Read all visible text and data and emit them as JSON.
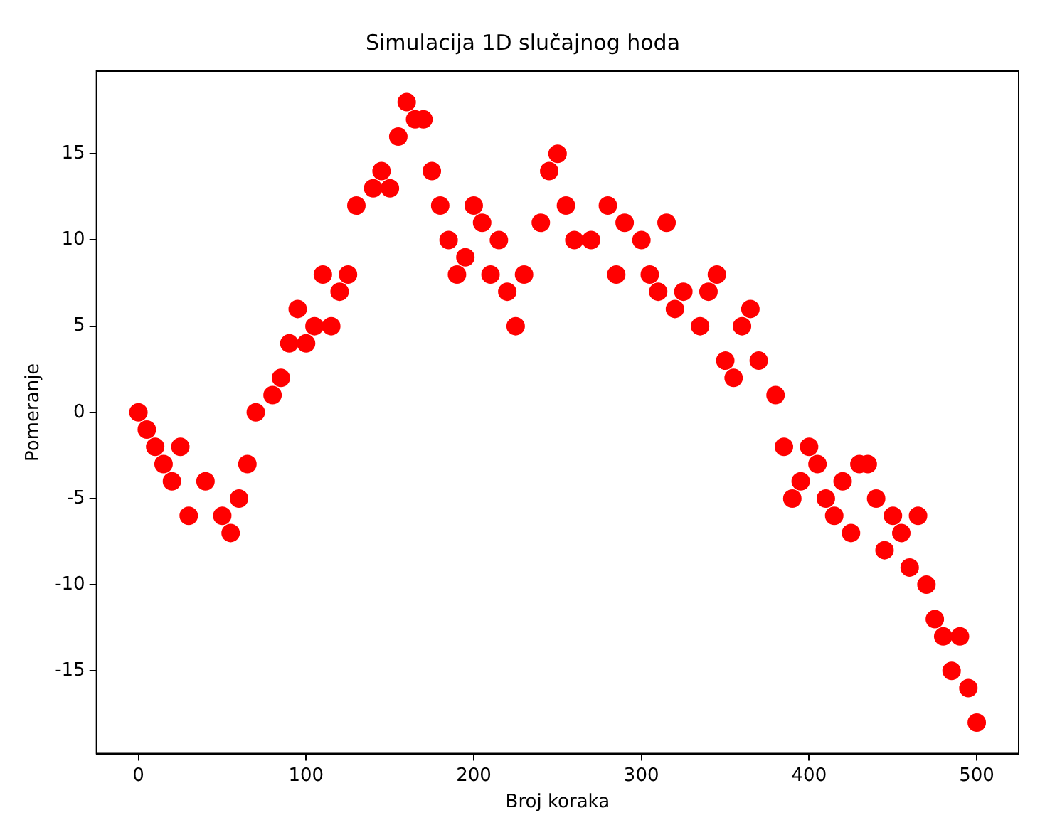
{
  "chart_data": {
    "type": "scatter",
    "title": "Simulacija 1D slučajnog hoda",
    "xlabel": "Broj koraka",
    "ylabel": "Pomeranje",
    "x": [
      0,
      5,
      10,
      15,
      20,
      25,
      30,
      40,
      50,
      55,
      60,
      65,
      70,
      80,
      85,
      90,
      95,
      100,
      105,
      110,
      115,
      120,
      125,
      130,
      140,
      145,
      150,
      155,
      160,
      165,
      170,
      175,
      180,
      185,
      190,
      195,
      200,
      205,
      210,
      215,
      220,
      225,
      230,
      240,
      245,
      250,
      255,
      260,
      270,
      280,
      285,
      290,
      300,
      305,
      310,
      315,
      320,
      325,
      335,
      340,
      345,
      350,
      355,
      360,
      365,
      370,
      380,
      385,
      390,
      395,
      400,
      405,
      410,
      415,
      420,
      425,
      430,
      435,
      440,
      445,
      450,
      455,
      460,
      465,
      470,
      475,
      480,
      485,
      490,
      495,
      500
    ],
    "series": [
      {
        "color": "#ff0000",
        "values": [
          0,
          -1,
          -2,
          -3,
          -4,
          -2,
          -6,
          -4,
          -6,
          -7,
          -5,
          -3,
          0,
          1,
          2,
          4,
          6,
          4,
          5,
          8,
          5,
          7,
          8,
          12,
          13,
          14,
          13,
          16,
          18,
          17,
          17,
          14,
          12,
          10,
          8,
          9,
          12,
          11,
          8,
          10,
          7,
          5,
          8,
          11,
          14,
          15,
          12,
          10,
          10,
          12,
          8,
          11,
          10,
          8,
          7,
          11,
          6,
          7,
          5,
          7,
          8,
          3,
          2,
          5,
          6,
          3,
          1,
          -2,
          -5,
          -4,
          -2,
          -3,
          -5,
          -6,
          -4,
          -7,
          -3,
          -3,
          -5,
          -8,
          -6,
          -7,
          -9,
          -6,
          -10,
          -12,
          -13,
          -15,
          -13,
          -16,
          -18
        ]
      }
    ],
    "xlim": [
      -25,
      525
    ],
    "xticks": [
      0,
      100,
      200,
      300,
      400,
      500
    ],
    "ylim": [
      -19.8,
      19.8
    ],
    "yticks": [
      -15,
      -10,
      -5,
      0,
      5,
      10,
      15
    ],
    "grid": false,
    "legend": false,
    "marker": "circle"
  }
}
